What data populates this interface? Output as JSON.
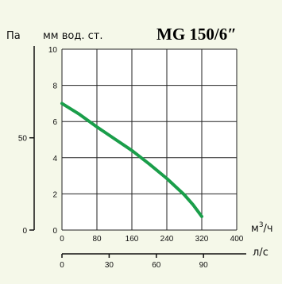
{
  "chart_data": {
    "type": "line",
    "title": "MG 150/6″",
    "y_left_unit": "Па",
    "y_right_unit": "мм вод. ст.",
    "x_unit": "м³/ч",
    "x_unit_base": "м",
    "x_unit_sup": "3",
    "x_unit_tail": "/ч",
    "x2_unit": "л/с",
    "xlim": [
      0,
      400
    ],
    "ylim": [
      0,
      10
    ],
    "x_ticks": [
      "0",
      "80",
      "160",
      "240",
      "320",
      "400"
    ],
    "y_ticks": [
      "0",
      "2",
      "4",
      "6",
      "8",
      "10"
    ],
    "pa_ticks": [
      {
        "label": "0",
        "y": 0
      },
      {
        "label": "50",
        "y": 5.1
      }
    ],
    "x2_ticks": [
      {
        "label": "0",
        "x": 0
      },
      {
        "label": "30",
        "x": 108
      },
      {
        "label": "60",
        "x": 216
      },
      {
        "label": "90",
        "x": 324
      }
    ],
    "grid": true,
    "series": [
      {
        "color": "#1a9e4a",
        "x": [
          0,
          40,
          80,
          120,
          160,
          200,
          240,
          280,
          300,
          320
        ],
        "y": [
          7.0,
          6.4,
          5.7,
          5.05,
          4.4,
          3.65,
          2.85,
          1.95,
          1.4,
          0.75
        ]
      }
    ]
  }
}
